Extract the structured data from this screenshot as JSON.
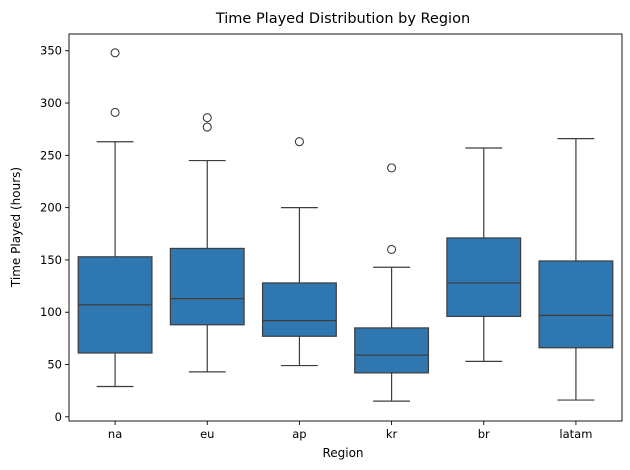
{
  "chart_data": {
    "type": "box",
    "title": "Time Played Distribution by Region",
    "xlabel": "Region",
    "ylabel": "Time Played (hours)",
    "ylim": [
      -4,
      366
    ],
    "yticks": [
      0,
      50,
      100,
      150,
      200,
      250,
      300,
      350
    ],
    "grid": false,
    "categories": [
      "na",
      "eu",
      "ap",
      "kr",
      "br",
      "latam"
    ],
    "series": [
      {
        "color": "#2e77b0",
        "boxes": [
          {
            "whisker_low": 29,
            "q1": 61,
            "median": 107,
            "q3": 153,
            "whisker_high": 263,
            "outliers": [
              291,
              348
            ]
          },
          {
            "whisker_low": 43,
            "q1": 88,
            "median": 113,
            "q3": 161,
            "whisker_high": 245,
            "outliers": [
              277,
              286
            ]
          },
          {
            "whisker_low": 49,
            "q1": 77,
            "median": 92,
            "q3": 128,
            "whisker_high": 200,
            "outliers": [
              263
            ]
          },
          {
            "whisker_low": 15,
            "q1": 42,
            "median": 59,
            "q3": 85,
            "whisker_high": 143,
            "outliers": [
              160,
              238
            ]
          },
          {
            "whisker_low": 53,
            "q1": 96,
            "median": 128,
            "q3": 171,
            "whisker_high": 257,
            "outliers": []
          },
          {
            "whisker_low": 16,
            "q1": 66,
            "median": 97,
            "q3": 149,
            "whisker_high": 266,
            "outliers": []
          }
        ]
      }
    ]
  }
}
